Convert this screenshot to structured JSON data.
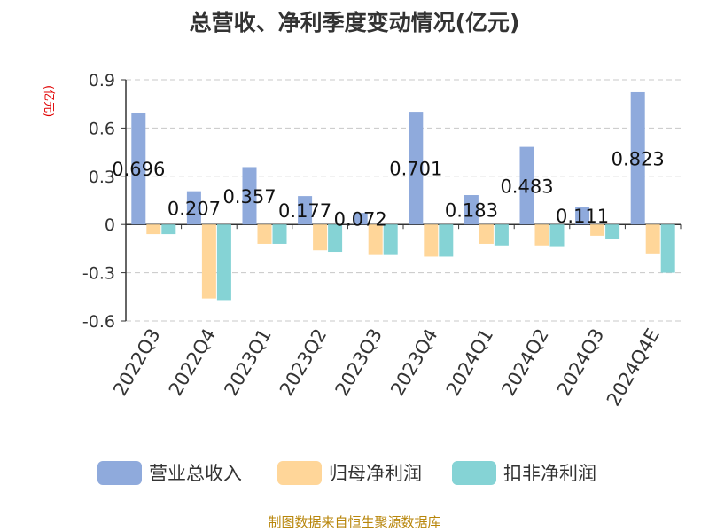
{
  "title": "总营收、净利季度变动情况(亿元)",
  "unit_label": "(亿元)",
  "footer": "制图数据来自恒生聚源数据库",
  "chart_data": {
    "type": "bar",
    "categories": [
      "2022Q3",
      "2022Q4",
      "2023Q1",
      "2023Q2",
      "2023Q3",
      "2023Q4",
      "2024Q1",
      "2024Q2",
      "2024Q3",
      "2024Q4E"
    ],
    "series": [
      {
        "name": "营业总收入",
        "color": "#8faadc",
        "values": [
          0.696,
          0.207,
          0.357,
          0.177,
          0.072,
          0.701,
          0.183,
          0.483,
          0.111,
          0.823
        ]
      },
      {
        "name": "归母净利润",
        "color": "#ffd699",
        "values": [
          -0.06,
          -0.46,
          -0.12,
          -0.16,
          -0.19,
          -0.2,
          -0.12,
          -0.13,
          -0.07,
          -0.18
        ]
      },
      {
        "name": "扣非净利润",
        "color": "#85d3d5",
        "values": [
          -0.06,
          -0.47,
          -0.12,
          -0.17,
          -0.19,
          -0.2,
          -0.13,
          -0.14,
          -0.09,
          -0.3
        ]
      }
    ],
    "data_labels": [
      "0.696",
      "0.207",
      "0.357",
      "0.177",
      "0.072",
      "0.701",
      "0.183",
      "0.483",
      "0.111",
      "0.823"
    ],
    "yticks": [
      "0.9",
      "0.6",
      "0.3",
      "0",
      "-0.3",
      "-0.6"
    ],
    "ylim": [
      -0.6,
      0.9
    ],
    "grid": true,
    "legend_position": "bottom"
  }
}
